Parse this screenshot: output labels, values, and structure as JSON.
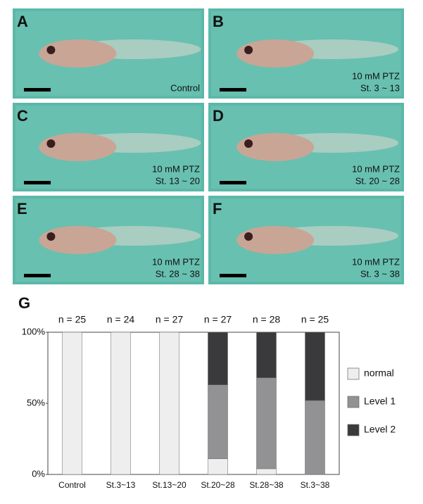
{
  "panels": [
    {
      "letter": "A",
      "caption": [
        "Control"
      ]
    },
    {
      "letter": "B",
      "caption": [
        "10 mM PTZ",
        "St. 3 ~ 13"
      ]
    },
    {
      "letter": "C",
      "caption": [
        "10 mM PTZ",
        "St. 13 ~ 20"
      ]
    },
    {
      "letter": "D",
      "caption": [
        "10 mM PTZ",
        "St. 20 ~ 28"
      ]
    },
    {
      "letter": "E",
      "caption": [
        "10 mM PTZ",
        "St. 28 ~ 38"
      ]
    },
    {
      "letter": "F",
      "caption": [
        "10 mM PTZ",
        "St. 3 ~ 38"
      ]
    }
  ],
  "chart_data": {
    "type": "stacked-bar",
    "panel_letter": "G",
    "categories": [
      "Control",
      "St.3~13",
      "St.13~20",
      "St.20~28",
      "St.28~38",
      "St.3~38"
    ],
    "sample_sizes": [
      "n = 25",
      "n = 24",
      "n = 27",
      "n = 27",
      "n = 28",
      "n = 25"
    ],
    "series": [
      {
        "name": "normal",
        "color": "#eeeeee",
        "values": [
          100,
          100,
          100,
          11,
          4,
          0
        ]
      },
      {
        "name": "Level 1",
        "color": "#929295",
        "values": [
          0,
          0,
          0,
          52,
          64,
          52
        ]
      },
      {
        "name": "Level 2",
        "color": "#3a3a3c",
        "values": [
          0,
          0,
          0,
          37,
          32,
          48
        ]
      }
    ],
    "ylim": [
      0,
      100
    ],
    "yticks": [
      {
        "value": 0,
        "label": "0%"
      },
      {
        "value": 50,
        "label": "50%"
      },
      {
        "value": 100,
        "label": "100%"
      }
    ]
  }
}
